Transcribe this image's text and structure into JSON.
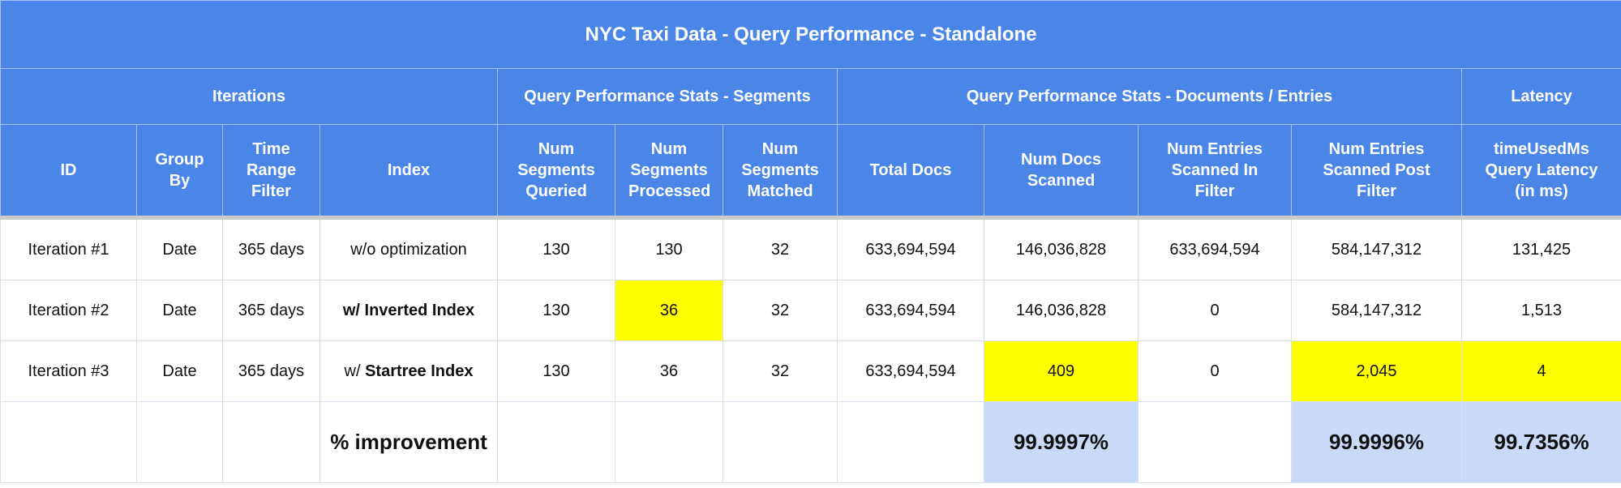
{
  "title": "NYC Taxi Data - Query Performance - Standalone",
  "groups": {
    "iterations": "Iterations",
    "segments": "Query Performance Stats - Segments",
    "documents": "Query Performance Stats - Documents / Entries",
    "latency": "Latency"
  },
  "columns": {
    "id": "ID",
    "group_by": "Group By",
    "time_range": "Time Range Filter",
    "index": "Index",
    "seg_queried": "Num Segments Queried",
    "seg_processed": "Num Segments Processed",
    "seg_matched": "Num Segments Matched",
    "total_docs": "Total Docs",
    "docs_scanned": "Num Docs Scanned",
    "entries_in_filter": "Num Entries Scanned In Filter",
    "entries_post_filter": "Num Entries Scanned Post Filter",
    "latency": "timeUsedMs Query Latency (in ms)"
  },
  "rows": [
    {
      "id": "Iteration #1",
      "group_by": "Date",
      "time_range": "365 days",
      "index_prefix": "w/o optimization",
      "index_bold": "",
      "seg_queried": "130",
      "seg_processed": "130",
      "seg_matched": "32",
      "total_docs": "633,694,594",
      "docs_scanned": "146,036,828",
      "entries_in_filter": "633,694,594",
      "entries_post_filter": "584,147,312",
      "latency": "131,425"
    },
    {
      "id": "Iteration #2",
      "group_by": "Date",
      "time_range": "365 days",
      "index_prefix": "",
      "index_bold": "w/ Inverted Index",
      "seg_queried": "130",
      "seg_processed": "36",
      "seg_matched": "32",
      "total_docs": "633,694,594",
      "docs_scanned": "146,036,828",
      "entries_in_filter": "0",
      "entries_post_filter": "584,147,312",
      "latency": "1,513"
    },
    {
      "id": "Iteration #3",
      "group_by": "Date",
      "time_range": "365 days",
      "index_prefix": "w/ ",
      "index_bold": "Startree Index",
      "seg_queried": "130",
      "seg_processed": "36",
      "seg_matched": "32",
      "total_docs": "633,694,594",
      "docs_scanned": "409",
      "entries_in_filter": "0",
      "entries_post_filter": "2,045",
      "latency": "4"
    }
  ],
  "improvement": {
    "label": "% improvement",
    "docs_scanned": "99.9997%",
    "entries_post_filter": "99.9996%",
    "latency": "99.7356%"
  },
  "colors": {
    "header_bg": "#4a86e8",
    "highlight_yellow": "#ffff00",
    "improvement_bg": "#c9daf8"
  }
}
